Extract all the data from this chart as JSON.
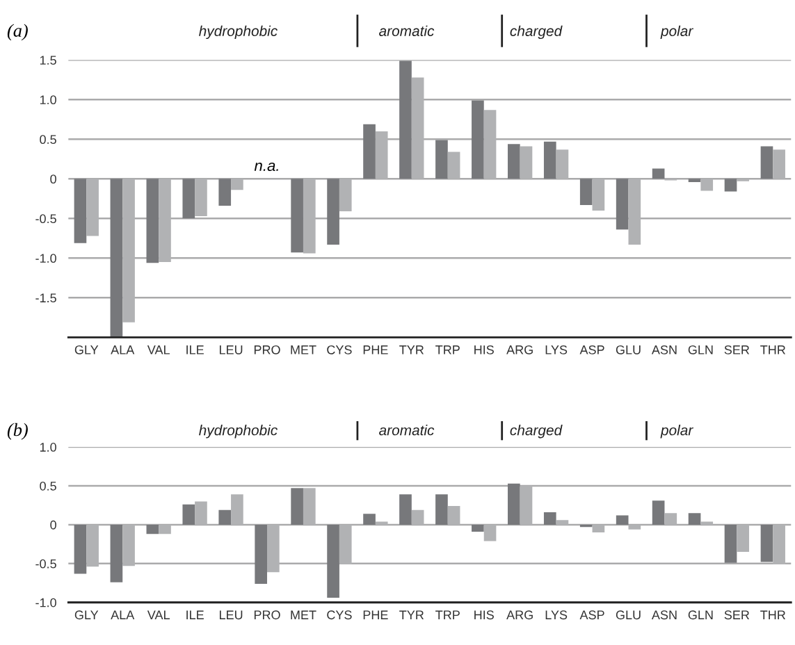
{
  "chart_data": [
    {
      "type": "bar",
      "title": "(a)",
      "categories": [
        "GLY",
        "ALA",
        "VAL",
        "ILE",
        "LEU",
        "PRO",
        "MET",
        "CYS",
        "PHE",
        "TYR",
        "TRP",
        "HIS",
        "ARG",
        "LYS",
        "ASP",
        "GLU",
        "ASN",
        "GLN",
        "SER",
        "THR"
      ],
      "series": [
        {
          "color": "#77787b",
          "values": [
            -0.81,
            -2.0,
            -1.06,
            -0.5,
            -0.34,
            null,
            -0.93,
            -0.83,
            0.69,
            1.49,
            0.49,
            0.99,
            0.44,
            0.47,
            -0.33,
            -0.64,
            0.13,
            -0.04,
            -0.16,
            0.41
          ]
        },
        {
          "color": "#b1b2b4",
          "values": [
            -0.72,
            -1.81,
            -1.05,
            -0.47,
            -0.14,
            null,
            -0.94,
            -0.41,
            0.6,
            1.28,
            0.34,
            0.87,
            0.41,
            0.37,
            -0.4,
            -0.83,
            -0.02,
            -0.15,
            -0.03,
            0.37
          ]
        }
      ],
      "ylim": [
        -2.0,
        1.5
      ],
      "yticks": [
        {
          "value": 1.5,
          "label": "1.5"
        },
        {
          "value": 1.0,
          "label": "1.0"
        },
        {
          "value": 0.5,
          "label": "0.5"
        },
        0,
        {
          "value": -0.5,
          "label": "-0.5"
        },
        {
          "value": -1.0,
          "label": "-1.0"
        },
        {
          "value": -1.5,
          "label": "-1.5"
        }
      ],
      "grid": "y",
      "annotations": [
        "hydrophobic",
        "aromatic",
        "charged",
        "polar",
        "n.a."
      ]
    },
    {
      "type": "bar",
      "title": "(b)",
      "categories": [
        "GLY",
        "ALA",
        "VAL",
        "ILE",
        "LEU",
        "PRO",
        "MET",
        "CYS",
        "PHE",
        "TYR",
        "TRP",
        "HIS",
        "ARG",
        "LYS",
        "ASP",
        "GLU",
        "ASN",
        "GLN",
        "SER",
        "THR"
      ],
      "series": [
        {
          "color": "#77787b",
          "values": [
            -0.63,
            -0.74,
            -0.12,
            0.26,
            0.19,
            -0.76,
            0.47,
            -0.94,
            0.14,
            0.39,
            0.39,
            -0.09,
            0.53,
            0.16,
            -0.03,
            0.12,
            0.31,
            0.15,
            -0.49,
            -0.48
          ]
        },
        {
          "color": "#b1b2b4",
          "values": [
            -0.54,
            -0.53,
            -0.12,
            0.3,
            0.39,
            -0.61,
            0.47,
            -0.51,
            0.04,
            0.19,
            0.24,
            -0.21,
            0.5,
            0.06,
            -0.1,
            -0.06,
            0.15,
            0.04,
            -0.35,
            -0.51
          ]
        }
      ],
      "ylim": [
        -1.0,
        1.0
      ],
      "yticks": [
        {
          "value": 1.0,
          "label": "1.0"
        },
        {
          "value": 0.5,
          "label": "0.5"
        },
        0,
        {
          "value": -0.5,
          "label": "-0.5"
        },
        {
          "value": -1.0,
          "label": "-1.0"
        }
      ],
      "grid": "y",
      "annotations": [
        "hydrophobic",
        "aromatic",
        "charged",
        "polar"
      ]
    }
  ]
}
